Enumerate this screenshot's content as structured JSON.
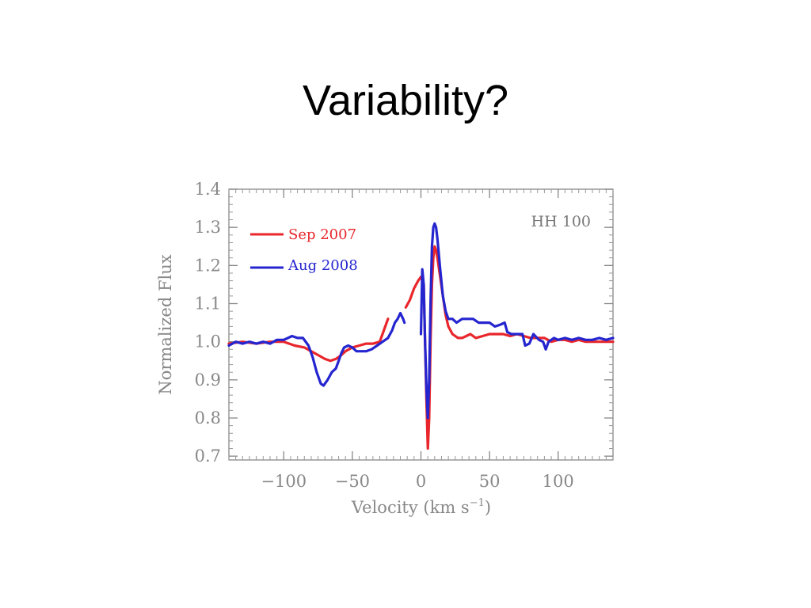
{
  "slide": {
    "title": "Variability?"
  },
  "chart_data": {
    "type": "line",
    "annotation": "HH 100",
    "xlabel": "Velocity (km s",
    "xlabel_sup": "−1",
    "xlabel_end": ")",
    "ylabel": "Normalized Flux",
    "xlim": [
      -140,
      140
    ],
    "ylim": [
      0.69,
      1.4
    ],
    "xticks": [
      -100,
      -50,
      0,
      50,
      100
    ],
    "xtick_labels": [
      "−100",
      "−50",
      "0",
      "50",
      "100"
    ],
    "yticks": [
      0.7,
      0.8,
      0.9,
      1.0,
      1.1,
      1.2,
      1.3,
      1.4
    ],
    "ytick_labels": [
      "0.7",
      "0.8",
      "0.9",
      "1.0",
      "1.1",
      "1.2",
      "1.3",
      "1.4"
    ],
    "legend_placement": "top-left",
    "series": [
      {
        "name": "Sep 2007",
        "color": "#e8262b",
        "segments": [
          [
            [
              -140,
              0.995
            ],
            [
              -130,
              1.0
            ],
            [
              -120,
              0.995
            ],
            [
              -110,
              1.0
            ],
            [
              -100,
              1.0
            ],
            [
              -92,
              0.99
            ],
            [
              -85,
              0.985
            ],
            [
              -80,
              0.975
            ],
            [
              -75,
              0.965
            ],
            [
              -70,
              0.955
            ],
            [
              -66,
              0.95
            ],
            [
              -62,
              0.955
            ],
            [
              -58,
              0.965
            ],
            [
              -55,
              0.975
            ],
            [
              -50,
              0.985
            ],
            [
              -45,
              0.99
            ],
            [
              -40,
              0.995
            ],
            [
              -35,
              0.995
            ],
            [
              -30,
              1.0
            ],
            [
              -27,
              1.03
            ],
            [
              -24,
              1.06
            ]
          ],
          [
            [
              -11,
              1.09
            ],
            [
              -8,
              1.11
            ],
            [
              -5,
              1.14
            ],
            [
              -2,
              1.16
            ],
            [
              0,
              1.17
            ],
            [
              2,
              1.15
            ],
            [
              3,
              1.0
            ],
            [
              4,
              0.85
            ],
            [
              5,
              0.72
            ],
            [
              6,
              0.8
            ],
            [
              7,
              1.0
            ],
            [
              8,
              1.15
            ],
            [
              9,
              1.22
            ],
            [
              10,
              1.25
            ],
            [
              11,
              1.24
            ],
            [
              12,
              1.22
            ],
            [
              14,
              1.17
            ],
            [
              16,
              1.12
            ],
            [
              18,
              1.07
            ],
            [
              20,
              1.04
            ],
            [
              23,
              1.02
            ],
            [
              27,
              1.01
            ],
            [
              30,
              1.01
            ],
            [
              33,
              1.015
            ],
            [
              36,
              1.02
            ],
            [
              40,
              1.01
            ],
            [
              45,
              1.015
            ],
            [
              50,
              1.02
            ],
            [
              55,
              1.02
            ],
            [
              60,
              1.02
            ],
            [
              65,
              1.015
            ],
            [
              70,
              1.02
            ],
            [
              75,
              1.015
            ],
            [
              80,
              1.01
            ],
            [
              85,
              1.01
            ],
            [
              90,
              1.01
            ],
            [
              95,
              1.0
            ],
            [
              100,
              1.005
            ],
            [
              105,
              1.005
            ],
            [
              110,
              1.0
            ],
            [
              115,
              1.005
            ],
            [
              120,
              1.0
            ],
            [
              125,
              1.0
            ],
            [
              130,
              1.0
            ],
            [
              135,
              1.0
            ],
            [
              140,
              1.0
            ]
          ]
        ]
      },
      {
        "name": "Aug 2008",
        "color": "#2525d0",
        "segments": [
          [
            [
              -140,
              0.99
            ],
            [
              -135,
              1.0
            ],
            [
              -130,
              0.995
            ],
            [
              -125,
              1.0
            ],
            [
              -120,
              0.995
            ],
            [
              -115,
              1.0
            ],
            [
              -110,
              0.995
            ],
            [
              -105,
              1.005
            ],
            [
              -100,
              1.005
            ],
            [
              -97,
              1.01
            ],
            [
              -94,
              1.015
            ],
            [
              -90,
              1.01
            ],
            [
              -86,
              1.01
            ],
            [
              -82,
              0.99
            ],
            [
              -79,
              0.96
            ],
            [
              -76,
              0.92
            ],
            [
              -73,
              0.89
            ],
            [
              -71,
              0.885
            ],
            [
              -68,
              0.9
            ],
            [
              -65,
              0.92
            ],
            [
              -62,
              0.93
            ],
            [
              -60,
              0.95
            ],
            [
              -58,
              0.97
            ],
            [
              -56,
              0.985
            ],
            [
              -53,
              0.99
            ],
            [
              -50,
              0.985
            ],
            [
              -47,
              0.975
            ],
            [
              -44,
              0.975
            ],
            [
              -40,
              0.975
            ],
            [
              -36,
              0.98
            ],
            [
              -32,
              0.99
            ],
            [
              -28,
              1.0
            ],
            [
              -24,
              1.01
            ],
            [
              -21,
              1.03
            ],
            [
              -19,
              1.05
            ],
            [
              -17,
              1.06
            ],
            [
              -15,
              1.075
            ],
            [
              -13,
              1.06
            ],
            [
              -12,
              1.05
            ]
          ],
          [
            [
              0,
              1.02
            ],
            [
              1,
              1.19
            ],
            [
              2,
              1.15
            ],
            [
              3,
              1.0
            ],
            [
              4,
              0.88
            ],
            [
              5,
              0.8
            ],
            [
              6,
              0.9
            ],
            [
              7,
              1.1
            ],
            [
              8,
              1.25
            ],
            [
              9,
              1.3
            ],
            [
              10,
              1.31
            ],
            [
              11,
              1.3
            ],
            [
              12,
              1.27
            ],
            [
              14,
              1.19
            ],
            [
              16,
              1.12
            ],
            [
              18,
              1.08
            ],
            [
              20,
              1.06
            ],
            [
              23,
              1.06
            ],
            [
              26,
              1.05
            ],
            [
              30,
              1.06
            ],
            [
              34,
              1.06
            ],
            [
              38,
              1.06
            ],
            [
              42,
              1.05
            ],
            [
              46,
              1.05
            ],
            [
              50,
              1.05
            ],
            [
              54,
              1.04
            ],
            [
              58,
              1.045
            ],
            [
              61,
              1.05
            ],
            [
              63,
              1.025
            ],
            [
              66,
              1.02
            ],
            [
              70,
              1.02
            ],
            [
              74,
              1.02
            ],
            [
              76,
              0.99
            ],
            [
              79,
              0.995
            ],
            [
              82,
              1.02
            ],
            [
              86,
              1.005
            ],
            [
              89,
              1.0
            ],
            [
              91,
              0.98
            ],
            [
              93,
              1.0
            ],
            [
              97,
              1.01
            ],
            [
              100,
              1.005
            ],
            [
              105,
              1.01
            ],
            [
              110,
              1.005
            ],
            [
              115,
              1.01
            ],
            [
              120,
              1.005
            ],
            [
              125,
              1.005
            ],
            [
              130,
              1.01
            ],
            [
              135,
              1.005
            ],
            [
              140,
              1.01
            ]
          ]
        ]
      }
    ]
  }
}
